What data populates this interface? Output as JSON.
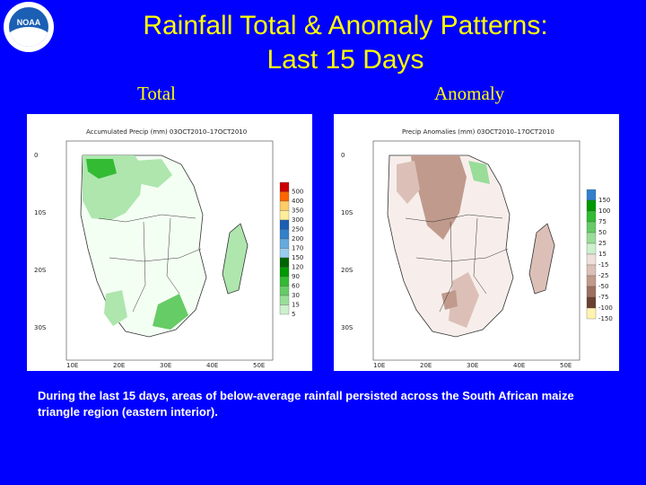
{
  "logo": {
    "text": "NOAA",
    "icon": "noaa-logo-icon"
  },
  "title": {
    "line1": "Rainfall Total & Anomaly Patterns:",
    "line2": "Last 15 Days"
  },
  "labels": {
    "total": "Total",
    "anomaly": "Anomaly"
  },
  "total_map": {
    "header": "Accumulated Precip (mm) 03OCT2010–17OCT2010",
    "lat_labels": [
      "0",
      "10S",
      "20S",
      "30S"
    ],
    "lon_labels": [
      "10E",
      "20E",
      "30E",
      "40E",
      "50E"
    ],
    "legend_values": [
      "500",
      "400",
      "350",
      "300",
      "250",
      "200",
      "170",
      "150",
      "120",
      "90",
      "60",
      "30",
      "15",
      "5"
    ],
    "legend_colors": [
      "#cc0000",
      "#ff6600",
      "#ffcc66",
      "#ffee99",
      "#1a5fb4",
      "#3380cc",
      "#66aadd",
      "#99ccee",
      "#006400",
      "#009900",
      "#33bb33",
      "#66cc66",
      "#99dd99",
      "#ccf0cc"
    ]
  },
  "anomaly_map": {
    "header": "Precip Anomalies (mm) 03OCT2010–17OCT2010",
    "lat_labels": [
      "0",
      "10S",
      "20S",
      "30S"
    ],
    "lon_labels": [
      "10E",
      "20E",
      "30E",
      "40E",
      "50E"
    ],
    "legend_values": [
      "150",
      "100",
      "75",
      "50",
      "25",
      "15",
      "-15",
      "-25",
      "-50",
      "-75",
      "-100",
      "-150"
    ],
    "legend_colors": [
      "#3380cc",
      "#009900",
      "#33bb33",
      "#66cc66",
      "#99dd99",
      "#ccf0cc",
      "#f0e0dc",
      "#dcc0b8",
      "#c09a8c",
      "#9c7060",
      "#6a4030",
      "#fff3b0"
    ]
  },
  "caption": "During the last 15 days, areas of below-average rainfall persisted across the South African maize triangle region (eastern interior)."
}
